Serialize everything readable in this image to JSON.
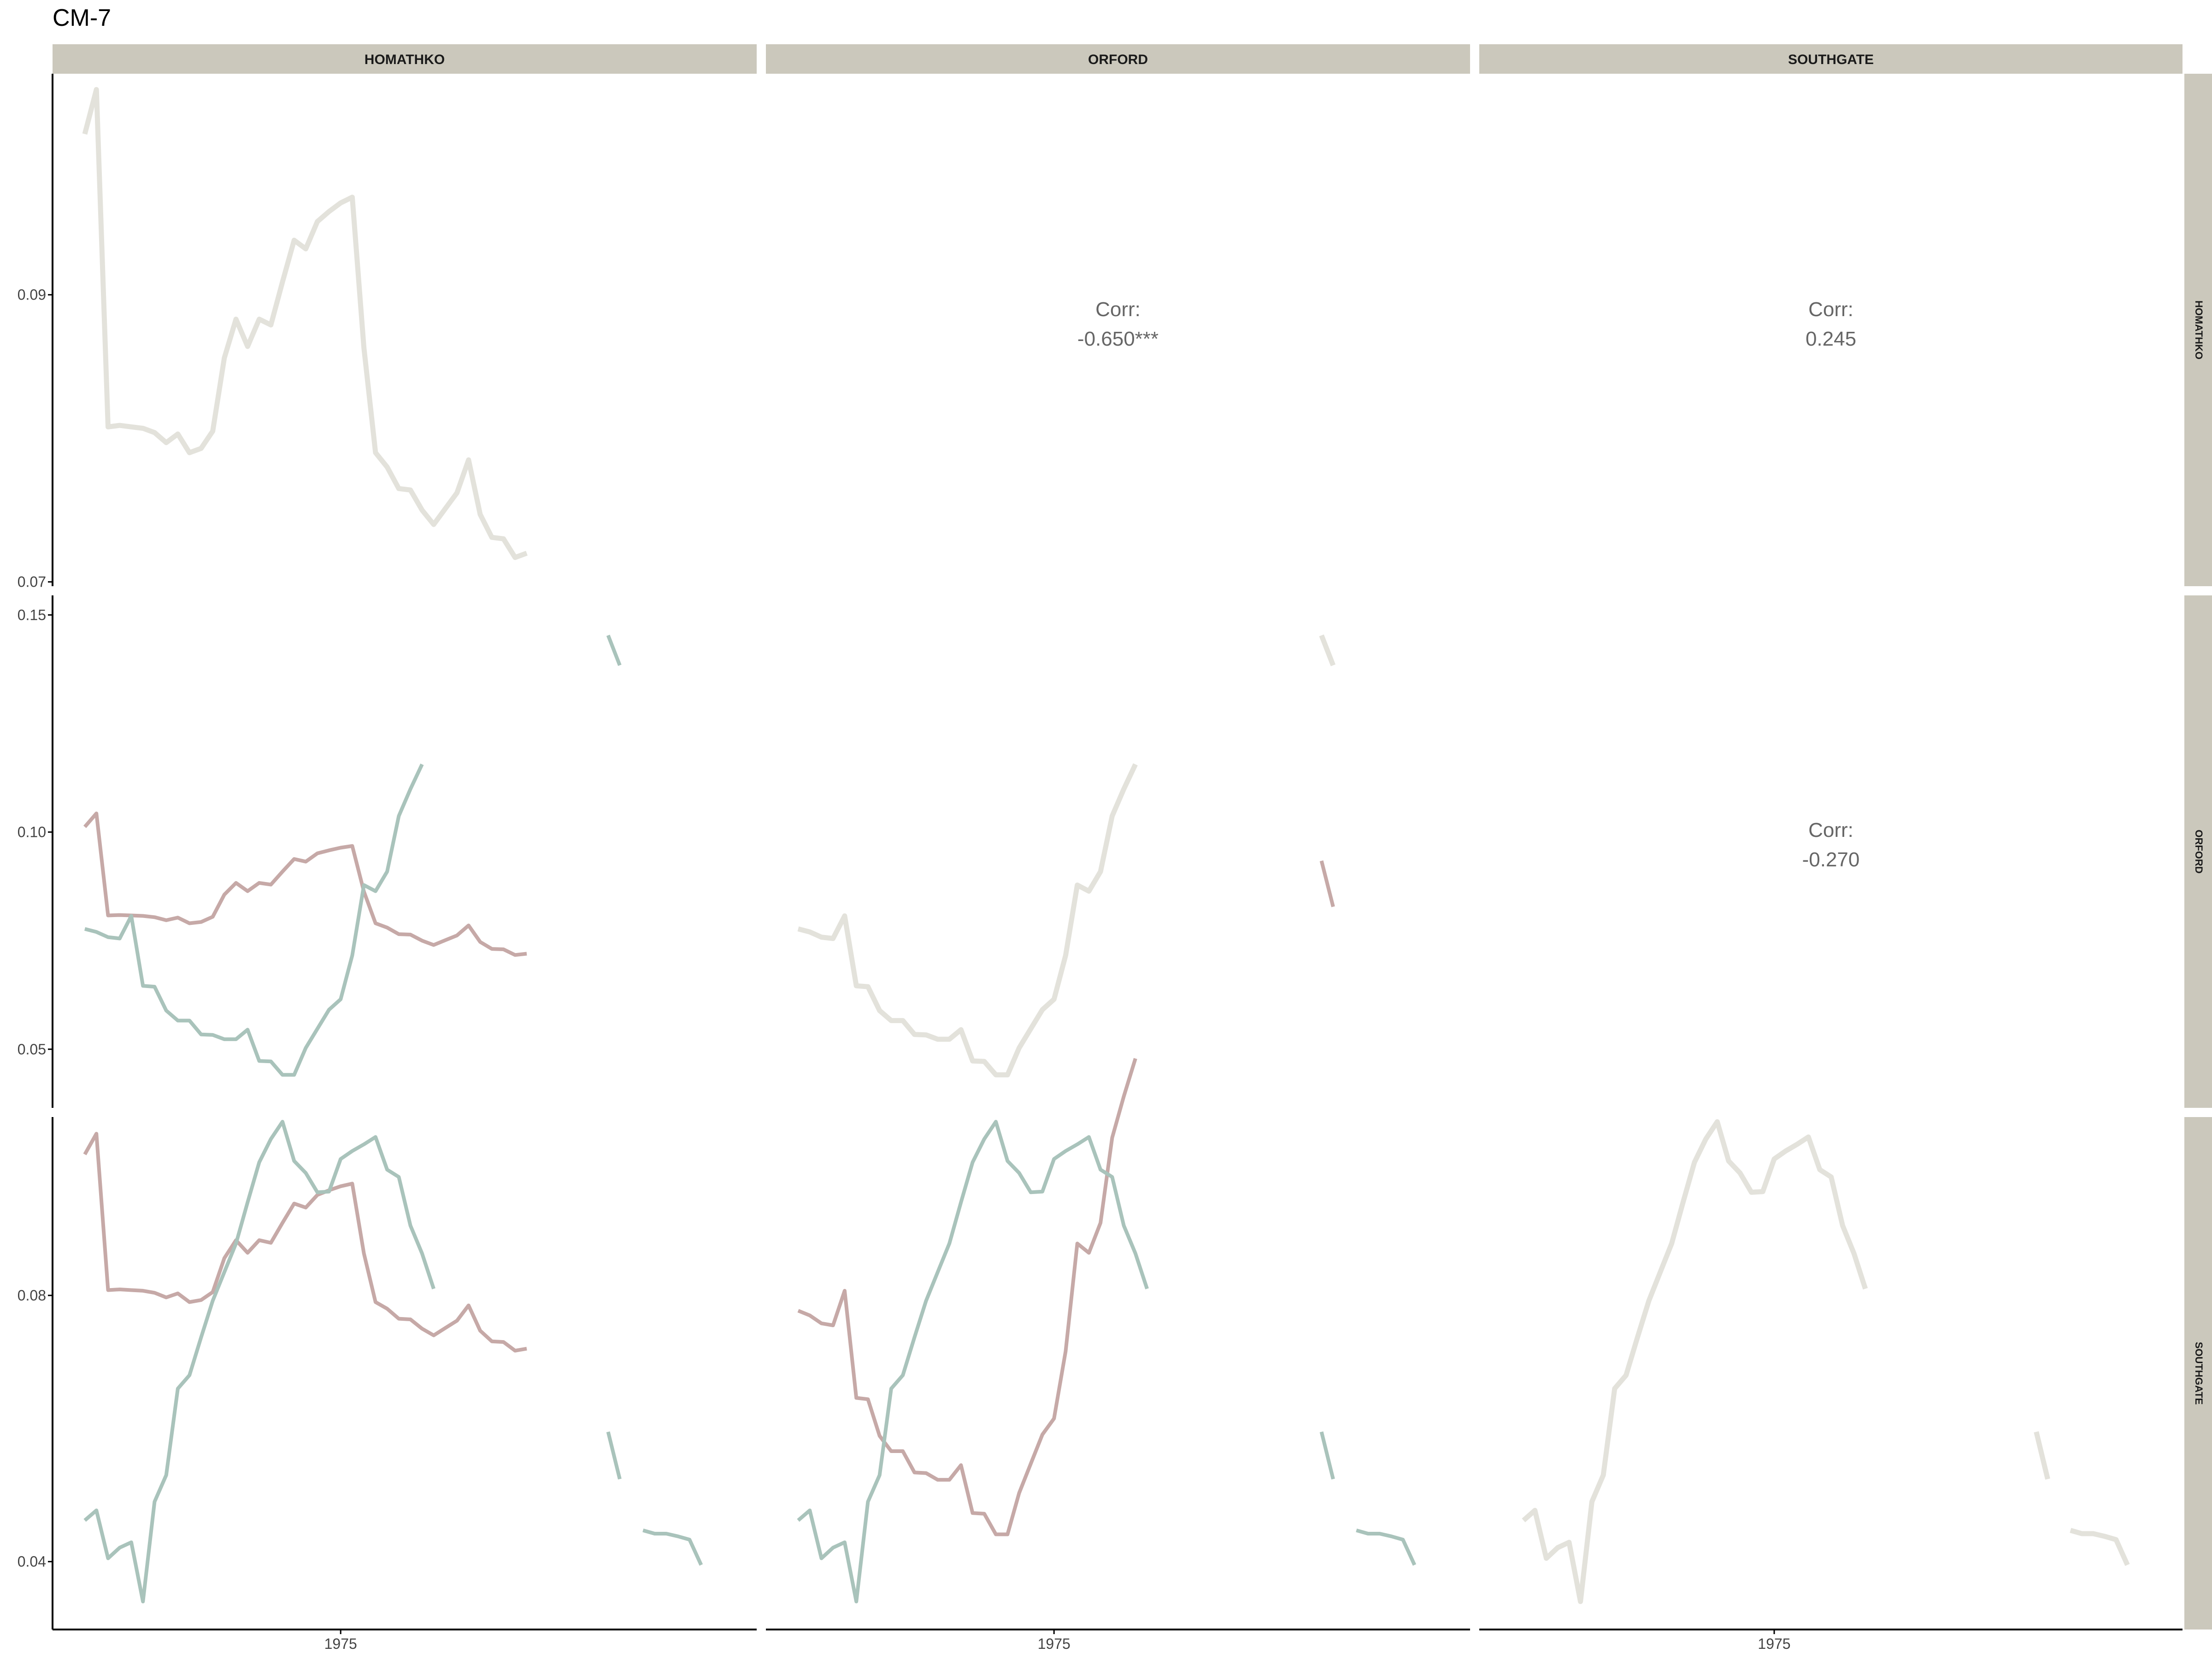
{
  "title": "CM-7",
  "colors": {
    "strip_bg": "#cbc8bc",
    "diag_line": "#e3e2db",
    "homathko_line": "#c6a9a7",
    "other_line": "#a9c3bb",
    "axis": "#000000",
    "tick_label": "#444444",
    "corr_text": "#666666"
  },
  "chart_data": {
    "type": "line",
    "title": "CM-7",
    "variables": [
      "HOMATHKO",
      "ORFORD",
      "SOUTHGATE"
    ],
    "x_tick_label": "1975",
    "x": [
      1953,
      1954,
      1955,
      1956,
      1957,
      1958,
      1959,
      1960,
      1961,
      1962,
      1963,
      1964,
      1965,
      1966,
      1967,
      1968,
      1969,
      1970,
      1971,
      1972,
      1973,
      1974,
      1975,
      1976,
      1977,
      1978,
      1979,
      1980,
      1981,
      1982,
      1983,
      1984,
      1985,
      1986,
      1987,
      1988,
      1989,
      1990,
      1991,
      1992,
      1993,
      1994,
      1995,
      1996,
      1997,
      1998,
      1999,
      2000,
      2001,
      2002,
      2003,
      2004,
      2005,
      2006,
      2007,
      2008
    ],
    "series": {
      "HOMATHKO": [
        0.1012,
        0.1043,
        0.0808,
        0.0809,
        0.0808,
        0.0807,
        0.0804,
        0.0797,
        0.0803,
        0.079,
        0.0793,
        0.0805,
        0.0856,
        0.0883,
        0.0864,
        0.0883,
        0.0879,
        0.0909,
        0.0938,
        0.0932,
        0.0951,
        0.0958,
        0.0964,
        0.0968,
        0.0863,
        0.079,
        0.078,
        0.0765,
        0.0764,
        0.075,
        0.074,
        0.0751,
        0.0762,
        0.0785,
        0.0747,
        0.0731,
        0.073,
        0.0717,
        0.072,
        null,
        null,
        null,
        null,
        null,
        null,
        null,
        null,
        null,
        null,
        null,
        null,
        null,
        null,
        null,
        null,
        null
      ],
      "ORFORD": [
        0.0777,
        0.077,
        0.0758,
        0.0755,
        0.0807,
        0.0646,
        0.0644,
        0.0589,
        0.0566,
        0.0566,
        0.0534,
        0.0533,
        0.0523,
        0.0523,
        0.0545,
        0.0473,
        0.0472,
        0.0441,
        0.0441,
        0.0503,
        0.0547,
        0.0591,
        0.0615,
        0.0716,
        0.0878,
        0.0864,
        0.0909,
        0.1037,
        0.1099,
        0.1156,
        null,
        null,
        null,
        null,
        null,
        null,
        null,
        null,
        null,
        null,
        null,
        null,
        null,
        null,
        null,
        0.1453,
        0.1384,
        null,
        null,
        null,
        null,
        null,
        null,
        null,
        null,
        null
      ],
      "SOUTHGATE": [
        0.0462,
        0.0477,
        0.0405,
        0.0421,
        0.0429,
        0.034,
        0.049,
        0.053,
        0.066,
        0.068,
        0.0737,
        0.0792,
        0.0835,
        0.0878,
        0.094,
        0.1,
        0.1035,
        0.1061,
        0.1002,
        0.0984,
        0.0955,
        0.0956,
        0.1005,
        0.1017,
        0.1027,
        0.1038,
        0.0989,
        0.0978,
        0.0905,
        0.0863,
        0.081,
        null,
        null,
        null,
        null,
        null,
        null,
        null,
        null,
        null,
        null,
        null,
        null,
        null,
        null,
        0.0595,
        0.0524,
        null,
        0.0447,
        0.0442,
        0.0442,
        0.0438,
        0.0433,
        0.0395,
        null,
        null
      ]
    },
    "panels": [
      {
        "row": 0,
        "col": 0,
        "kind": "diag",
        "y": "HOMATHKO",
        "y_ticks": [
          0.07,
          0.09
        ],
        "y_lim": [
          0.0697,
          0.1054
        ]
      },
      {
        "row": 1,
        "col": 0,
        "kind": "pair",
        "x": "HOMATHKO",
        "y": "ORFORD",
        "y_ticks": [
          0.05,
          0.1,
          0.15
        ],
        "y_lim": [
          0.0365,
          0.1545
        ]
      },
      {
        "row": 2,
        "col": 0,
        "kind": "pair",
        "x": "HOMATHKO",
        "y": "SOUTHGATE",
        "y_ticks": [
          0.04,
          0.08
        ],
        "y_lim": [
          0.0298,
          0.1068
        ]
      },
      {
        "row": 1,
        "col": 1,
        "kind": "diag",
        "y": "ORFORD",
        "y_lim": [
          0.0365,
          0.1545
        ]
      },
      {
        "row": 2,
        "col": 1,
        "kind": "pair",
        "x": "ORFORD",
        "y": "SOUTHGATE",
        "y_lim": [
          0.0298,
          0.1068
        ]
      },
      {
        "row": 2,
        "col": 2,
        "kind": "diag",
        "y": "SOUTHGATE",
        "y_lim": [
          0.0298,
          0.1068
        ]
      },
      {
        "row": 0,
        "col": 1,
        "kind": "corr",
        "label": "Corr:",
        "value": "-0.650***"
      },
      {
        "row": 0,
        "col": 2,
        "kind": "corr",
        "label": "Corr:",
        "value": "0.245"
      },
      {
        "row": 1,
        "col": 2,
        "kind": "corr",
        "label": "Corr:",
        "value": "-0.270"
      }
    ],
    "x_range": [
      1953,
      2008
    ],
    "grid": false,
    "strip_labels_top": [
      "HOMATHKO",
      "ORFORD",
      "SOUTHGATE"
    ],
    "strip_labels_right": [
      "HOMATHKO",
      "ORFORD",
      "SOUTHGATE"
    ]
  }
}
